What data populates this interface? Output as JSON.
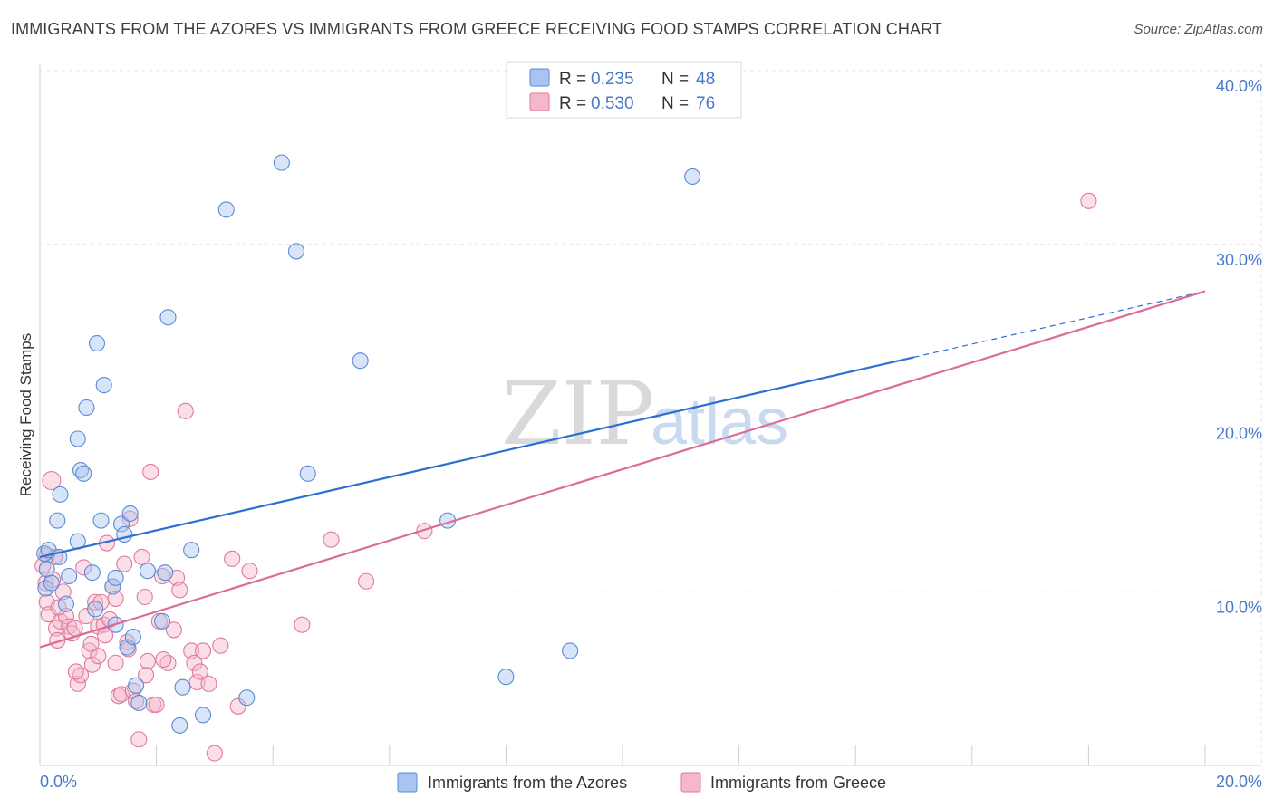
{
  "header": {
    "title": "IMMIGRANTS FROM THE AZORES VS IMMIGRANTS FROM GREECE RECEIVING FOOD STAMPS CORRELATION CHART",
    "source": "Source: ZipAtlas.com"
  },
  "watermark": {
    "zip": "ZIP",
    "atlas": "atlas"
  },
  "chart_data": {
    "type": "scatter",
    "ylabel": "Receiving Food Stamps",
    "xlim": [
      0,
      20
    ],
    "ylim": [
      0,
      40
    ],
    "x_tick_labels": [
      "0.0%",
      "20.0%"
    ],
    "y_ticks": [
      10,
      20,
      30,
      40
    ],
    "y_tick_labels": [
      "10.0%",
      "20.0%",
      "30.0%",
      "40.0%"
    ],
    "legend": {
      "entries": [
        {
          "r_label": "R =",
          "r_value": "0.235",
          "n_label": "N =",
          "n_value": "48"
        },
        {
          "r_label": "R =",
          "r_value": "0.530",
          "n_label": "N =",
          "n_value": "76"
        }
      ]
    },
    "series": [
      {
        "name": "Immigrants from the Azores",
        "fill": "#a9c4ee",
        "stroke": "#5b8ad6",
        "line_color": "#2a6fd1",
        "trend": {
          "x0": 0,
          "y0": 12.0,
          "x1": 15.0,
          "y1": 23.5,
          "dash_to_x": 20,
          "dash_to_y": 27.3
        },
        "points": [
          [
            0.08,
            12.2
          ],
          [
            0.1,
            10.2
          ],
          [
            0.12,
            11.3
          ],
          [
            0.15,
            12.4
          ],
          [
            0.2,
            10.5
          ],
          [
            0.3,
            14.1
          ],
          [
            0.35,
            15.6
          ],
          [
            0.45,
            9.3
          ],
          [
            0.5,
            10.9
          ],
          [
            0.65,
            12.9
          ],
          [
            0.65,
            18.8
          ],
          [
            0.7,
            17.0
          ],
          [
            0.75,
            16.8
          ],
          [
            0.8,
            20.6
          ],
          [
            0.9,
            11.1
          ],
          [
            0.95,
            9.0
          ],
          [
            0.98,
            24.3
          ],
          [
            1.05,
            14.1
          ],
          [
            1.1,
            21.9
          ],
          [
            1.25,
            10.3
          ],
          [
            1.3,
            10.8
          ],
          [
            1.3,
            8.1
          ],
          [
            1.4,
            13.9
          ],
          [
            1.45,
            13.3
          ],
          [
            1.5,
            6.8
          ],
          [
            1.55,
            14.5
          ],
          [
            1.6,
            7.4
          ],
          [
            1.65,
            4.6
          ],
          [
            1.7,
            3.6
          ],
          [
            1.85,
            11.2
          ],
          [
            2.1,
            8.3
          ],
          [
            2.15,
            11.1
          ],
          [
            2.2,
            25.8
          ],
          [
            2.4,
            2.3
          ],
          [
            2.45,
            4.5
          ],
          [
            2.6,
            12.4
          ],
          [
            2.8,
            2.9
          ],
          [
            3.2,
            32.0
          ],
          [
            3.55,
            3.9
          ],
          [
            4.15,
            34.7
          ],
          [
            4.4,
            29.6
          ],
          [
            4.6,
            16.8
          ],
          [
            5.5,
            23.3
          ],
          [
            0.33,
            12.0
          ],
          [
            7.0,
            14.1
          ],
          [
            8.0,
            5.1
          ],
          [
            9.1,
            6.6
          ],
          [
            11.2,
            33.9
          ]
        ]
      },
      {
        "name": "Immigrants from Greece",
        "fill": "#f5b8cb",
        "stroke": "#e07a9a",
        "line_color": "#dd6c94",
        "trend": {
          "x0": 0,
          "y0": 6.8,
          "x1": 20,
          "y1": 27.3
        },
        "points": [
          [
            0.05,
            11.5
          ],
          [
            0.1,
            10.5
          ],
          [
            0.12,
            9.4
          ],
          [
            0.15,
            8.7
          ],
          [
            0.2,
            16.4
          ],
          [
            0.25,
            12.0
          ],
          [
            0.28,
            7.9
          ],
          [
            0.3,
            7.2
          ],
          [
            0.35,
            8.3
          ],
          [
            0.4,
            10.0
          ],
          [
            0.45,
            8.6
          ],
          [
            0.5,
            8.0
          ],
          [
            0.55,
            7.6
          ],
          [
            0.6,
            7.9
          ],
          [
            0.65,
            4.7
          ],
          [
            0.7,
            5.2
          ],
          [
            0.75,
            11.4
          ],
          [
            0.8,
            8.6
          ],
          [
            0.85,
            6.6
          ],
          [
            0.9,
            5.8
          ],
          [
            0.95,
            9.4
          ],
          [
            1.0,
            6.3
          ],
          [
            1.0,
            8.0
          ],
          [
            1.05,
            9.4
          ],
          [
            1.1,
            8.1
          ],
          [
            1.15,
            12.8
          ],
          [
            1.2,
            8.4
          ],
          [
            1.25,
            10.3
          ],
          [
            1.3,
            9.6
          ],
          [
            1.3,
            5.9
          ],
          [
            1.35,
            4.0
          ],
          [
            1.4,
            4.1
          ],
          [
            1.45,
            11.6
          ],
          [
            1.5,
            7.1
          ],
          [
            1.55,
            14.2
          ],
          [
            1.6,
            4.3
          ],
          [
            1.65,
            3.7
          ],
          [
            1.7,
            1.5
          ],
          [
            1.75,
            12.0
          ],
          [
            1.8,
            9.7
          ],
          [
            1.85,
            6.0
          ],
          [
            1.9,
            16.9
          ],
          [
            1.95,
            3.5
          ],
          [
            2.0,
            3.5
          ],
          [
            2.05,
            8.3
          ],
          [
            2.1,
            10.9
          ],
          [
            2.2,
            5.9
          ],
          [
            2.3,
            7.8
          ],
          [
            2.35,
            10.8
          ],
          [
            2.4,
            10.1
          ],
          [
            2.5,
            20.4
          ],
          [
            2.6,
            6.6
          ],
          [
            2.65,
            5.9
          ],
          [
            2.7,
            4.8
          ],
          [
            2.75,
            5.4
          ],
          [
            2.8,
            6.6
          ],
          [
            2.9,
            4.7
          ],
          [
            3.0,
            0.7
          ],
          [
            3.1,
            6.9
          ],
          [
            3.3,
            11.9
          ],
          [
            3.4,
            3.4
          ],
          [
            3.6,
            11.2
          ],
          [
            4.5,
            8.1
          ],
          [
            5.0,
            13.0
          ],
          [
            5.6,
            10.6
          ],
          [
            6.6,
            13.5
          ],
          [
            18.0,
            32.5
          ],
          [
            0.12,
            12.1
          ],
          [
            0.22,
            10.7
          ],
          [
            0.32,
            9.1
          ],
          [
            0.62,
            5.4
          ],
          [
            0.88,
            7.0
          ],
          [
            1.12,
            7.5
          ],
          [
            1.52,
            6.7
          ],
          [
            1.82,
            5.2
          ],
          [
            2.12,
            6.1
          ]
        ]
      }
    ]
  }
}
